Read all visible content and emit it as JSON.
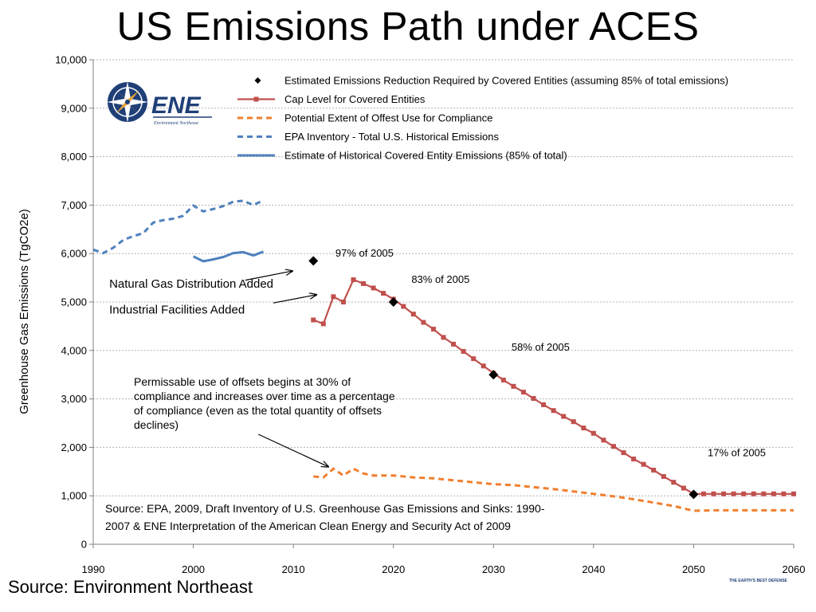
{
  "page": {
    "title": "US Emissions Path under ACES",
    "footer_source": "Source: Environment Northeast",
    "logo_text": "ENE",
    "logo_subtext": "Environment Northeast",
    "tiny_mark": "THE EARTH'S BEST DEFENSE"
  },
  "chart_data": {
    "type": "line",
    "title": "US Emissions Path under ACES",
    "ylabel": "Greenhouse Gas Emissions (TgCO2e)",
    "xlabel": "",
    "xlim": [
      1990,
      2060
    ],
    "ylim": [
      0,
      10000
    ],
    "x_ticks": [
      1990,
      2000,
      2010,
      2020,
      2030,
      2040,
      2050,
      2060
    ],
    "y_ticks": [
      0,
      1000,
      2000,
      3000,
      4000,
      5000,
      6000,
      7000,
      8000,
      9000,
      10000
    ],
    "y_tick_labels": [
      "0",
      "1,000",
      "2,000",
      "3,000",
      "4,000",
      "5,000",
      "6,000",
      "7,000",
      "8,000",
      "9,000",
      "10,000"
    ],
    "grid": "horizontal-dashed",
    "legend_position": "top-right",
    "series": [
      {
        "key": "epa",
        "name": "EPA Inventory  - Total U.S. Historical Emissions",
        "style": "dashed",
        "color": "#4f81bd",
        "points": [
          [
            1990,
            6080
          ],
          [
            1991,
            6010
          ],
          [
            1992,
            6120
          ],
          [
            1993,
            6280
          ],
          [
            1994,
            6360
          ],
          [
            1995,
            6420
          ],
          [
            1996,
            6640
          ],
          [
            1997,
            6690
          ],
          [
            1998,
            6720
          ],
          [
            1999,
            6780
          ],
          [
            2000,
            6990
          ],
          [
            2001,
            6870
          ],
          [
            2002,
            6920
          ],
          [
            2003,
            6980
          ],
          [
            2004,
            7070
          ],
          [
            2005,
            7090
          ],
          [
            2006,
            7000
          ],
          [
            2007,
            7100
          ]
        ]
      },
      {
        "key": "covered",
        "name": "Estimate of Historical Covered Entity Emissions (85% of total)",
        "style": "solid",
        "color": "#4f81bd",
        "points": [
          [
            2000,
            5940
          ],
          [
            2001,
            5840
          ],
          [
            2002,
            5880
          ],
          [
            2003,
            5930
          ],
          [
            2004,
            6010
          ],
          [
            2005,
            6030
          ],
          [
            2006,
            5960
          ],
          [
            2007,
            6040
          ]
        ]
      },
      {
        "key": "cap",
        "name": "Cap Level for Covered  Entities",
        "style": "solid-square-markers",
        "color": "#c0504d",
        "points": [
          [
            2012,
            4630
          ],
          [
            2013,
            4550
          ],
          [
            2014,
            5110
          ],
          [
            2015,
            5000
          ],
          [
            2016,
            5460
          ],
          [
            2017,
            5380
          ],
          [
            2018,
            5290
          ],
          [
            2019,
            5180
          ],
          [
            2020,
            5060
          ],
          [
            2021,
            4910
          ],
          [
            2022,
            4750
          ],
          [
            2023,
            4580
          ],
          [
            2024,
            4440
          ],
          [
            2025,
            4270
          ],
          [
            2026,
            4130
          ],
          [
            2027,
            3980
          ],
          [
            2028,
            3830
          ],
          [
            2029,
            3680
          ],
          [
            2030,
            3530
          ],
          [
            2031,
            3390
          ],
          [
            2032,
            3260
          ],
          [
            2033,
            3140
          ],
          [
            2034,
            3010
          ],
          [
            2035,
            2880
          ],
          [
            2036,
            2760
          ],
          [
            2037,
            2640
          ],
          [
            2038,
            2530
          ],
          [
            2039,
            2400
          ],
          [
            2040,
            2290
          ],
          [
            2041,
            2150
          ],
          [
            2042,
            2020
          ],
          [
            2043,
            1890
          ],
          [
            2044,
            1760
          ],
          [
            2045,
            1650
          ],
          [
            2046,
            1530
          ],
          [
            2047,
            1400
          ],
          [
            2048,
            1280
          ],
          [
            2049,
            1160
          ],
          [
            2050,
            1040
          ],
          [
            2051,
            1040
          ],
          [
            2052,
            1040
          ],
          [
            2053,
            1040
          ],
          [
            2054,
            1040
          ],
          [
            2055,
            1040
          ],
          [
            2056,
            1040
          ],
          [
            2057,
            1040
          ],
          [
            2058,
            1040
          ],
          [
            2059,
            1040
          ],
          [
            2060,
            1040
          ]
        ]
      },
      {
        "key": "offset",
        "name": "Potential Extent of Offest Use for Compliance",
        "style": "dashed",
        "color": "#f07f2e",
        "points": [
          [
            2012,
            1400
          ],
          [
            2013,
            1380
          ],
          [
            2014,
            1560
          ],
          [
            2015,
            1420
          ],
          [
            2016,
            1560
          ],
          [
            2017,
            1460
          ],
          [
            2018,
            1420
          ],
          [
            2019,
            1420
          ],
          [
            2020,
            1420
          ],
          [
            2022,
            1380
          ],
          [
            2024,
            1360
          ],
          [
            2026,
            1320
          ],
          [
            2028,
            1280
          ],
          [
            2030,
            1240
          ],
          [
            2032,
            1220
          ],
          [
            2034,
            1180
          ],
          [
            2036,
            1140
          ],
          [
            2038,
            1090
          ],
          [
            2040,
            1040
          ],
          [
            2042,
            990
          ],
          [
            2044,
            930
          ],
          [
            2046,
            860
          ],
          [
            2048,
            790
          ],
          [
            2050,
            690
          ],
          [
            2052,
            700
          ],
          [
            2055,
            700
          ],
          [
            2058,
            700
          ],
          [
            2060,
            700
          ]
        ]
      },
      {
        "key": "diamonds",
        "name": "Estimated Emissions Reduction Required by Covered  Entities (assuming 85% of total emissions)",
        "style": "diamond-markers",
        "color": "#000000",
        "points": [
          [
            2012,
            5850
          ],
          [
            2020,
            5000
          ],
          [
            2030,
            3500
          ],
          [
            2050,
            1030
          ]
        ]
      }
    ],
    "legend_order": [
      "diamonds",
      "cap",
      "offset",
      "epa",
      "covered"
    ],
    "annotations": {
      "pct_labels": [
        {
          "text": "97% of 2005",
          "x": 2014.2,
          "y": 6000
        },
        {
          "text": "83% of 2005",
          "x": 2021.8,
          "y": 5460
        },
        {
          "text": "58% of 2005",
          "x": 2031.8,
          "y": 4060
        },
        {
          "text": "17% of 2005",
          "x": 2051.4,
          "y": 1880
        }
      ],
      "arrows": [
        {
          "text": "Natural Gas Distribution Added",
          "text_x": 1991.6,
          "text_y": 5380,
          "from": [
            2005.2,
            5450
          ],
          "to": [
            2009.9,
            5640
          ]
        },
        {
          "text": "Industrial Facilities Added",
          "text_x": 1991.6,
          "text_y": 4840,
          "from": [
            2008.0,
            4980
          ],
          "to": [
            2012.3,
            5150
          ]
        }
      ],
      "offset_note": {
        "lines": [
          "Permissable use of offsets begins at 30% of",
          "compliance and increases over time as a percentage",
          "of compliance (even as the total quantity of offsets",
          "declines)"
        ],
        "arrow_from": [
          2006.5,
          2270
        ],
        "arrow_to": [
          2013.5,
          1600
        ]
      },
      "source_note": {
        "lines": [
          "Source: EPA, 2009, Draft Inventory of U.S. Greenhouse Gas Emissions and Sinks: 1990-",
          "2007 & ENE Interpretation of the American Clean Energy and Security Act of 2009"
        ]
      }
    }
  }
}
